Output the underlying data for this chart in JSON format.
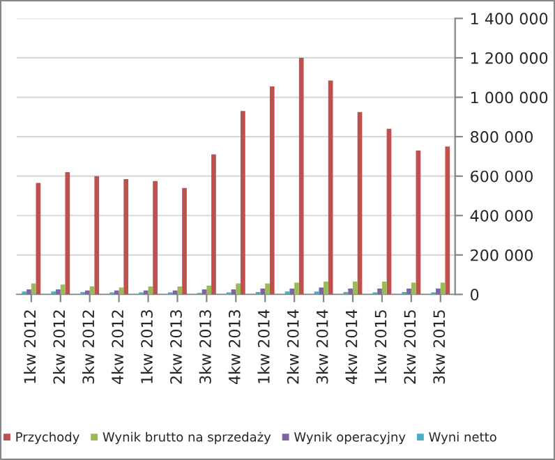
{
  "chart_data": {
    "type": "bar",
    "categories": [
      "1kw 2012",
      "2kw 2012",
      "3kw 2012",
      "4kw 2012",
      "1kw 2013",
      "2kw 2013",
      "3kw 2013",
      "4kw 2013",
      "1kw 2014",
      "2kw 2014",
      "3kw 2014",
      "4kw 2014",
      "1kw 2015",
      "2kw 2015",
      "3kw 2015"
    ],
    "series": [
      {
        "name": "Przychody",
        "color": "#c0504d",
        "values": [
          565000,
          620000,
          600000,
          585000,
          575000,
          540000,
          710000,
          930000,
          1055000,
          1200000,
          1085000,
          925000,
          840000,
          730000,
          750000
        ]
      },
      {
        "name": "Wynik brutto na sprzedaży",
        "color": "#9bbb59",
        "values": [
          55000,
          50000,
          40000,
          35000,
          40000,
          40000,
          45000,
          55000,
          55000,
          60000,
          65000,
          65000,
          65000,
          60000,
          60000
        ]
      },
      {
        "name": "Wynik operacyjny",
        "color": "#8064a2",
        "values": [
          25000,
          25000,
          20000,
          20000,
          20000,
          20000,
          25000,
          25000,
          30000,
          30000,
          35000,
          30000,
          30000,
          30000,
          30000
        ]
      },
      {
        "name": "Wyni netto",
        "color": "#4bacc6",
        "values": [
          15000,
          15000,
          12000,
          10000,
          10000,
          10000,
          8000,
          10000,
          12000,
          15000,
          15000,
          12000,
          10000,
          12000,
          10000
        ]
      }
    ],
    "ylim": [
      0,
      1400000
    ],
    "yticks": [
      {
        "value": 0,
        "label": "0"
      },
      {
        "value": 200000,
        "label": "200 000"
      },
      {
        "value": 400000,
        "label": "400 000"
      },
      {
        "value": 600000,
        "label": "600 000"
      },
      {
        "value": 800000,
        "label": "800 000"
      },
      {
        "value": 1000000,
        "label": "1 000 000"
      },
      {
        "value": 1200000,
        "label": "1 200 000"
      },
      {
        "value": 1400000,
        "label": "1 400 000"
      }
    ],
    "grid": "y",
    "legend": "bottom"
  }
}
